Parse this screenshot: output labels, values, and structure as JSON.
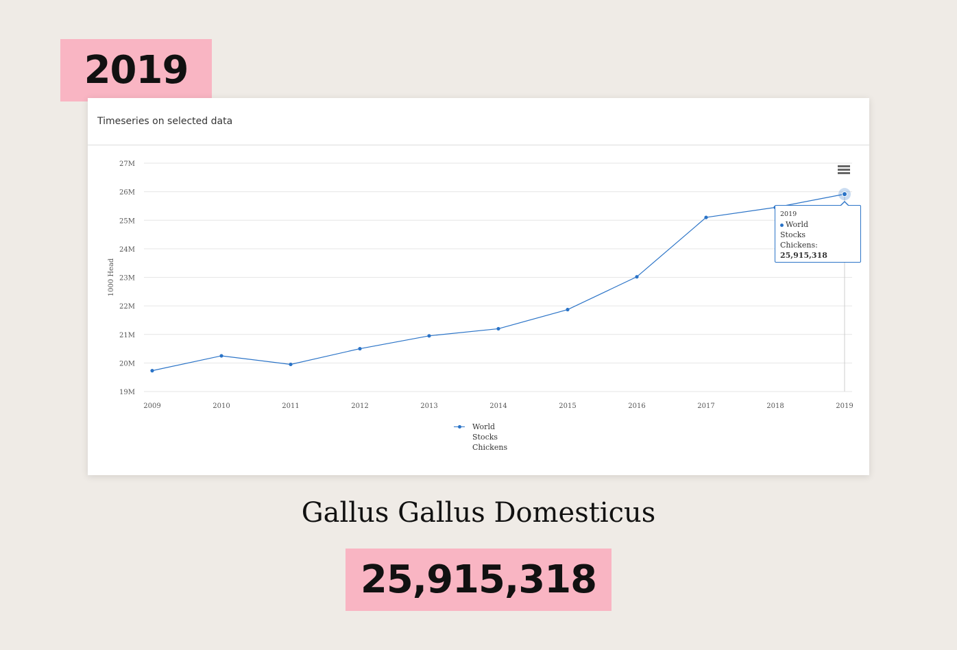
{
  "year_badge": "2019",
  "card": {
    "header_title": "Timeseries on selected data"
  },
  "tooltip": {
    "year": "2019",
    "series_name": "World",
    "line2": "Stocks",
    "line3_prefix": "Chickens: ",
    "value": "25,915,318"
  },
  "legend": {
    "label_lines": [
      "World",
      "Stocks",
      "Chickens"
    ]
  },
  "species_name": "Gallus Gallus Domesticus",
  "value_badge": "25,915,318",
  "colors": {
    "series": "#2a73c7",
    "badge_bg": "#f9b5c3",
    "grid": "#e6e6e6"
  },
  "icons": {
    "menu": "hamburger-menu-icon"
  },
  "chart_data": {
    "type": "line",
    "title": "Timeseries on selected data",
    "xlabel": "",
    "ylabel": "1000 Head",
    "x": [
      "2009",
      "2010",
      "2011",
      "2012",
      "2013",
      "2014",
      "2015",
      "2016",
      "2017",
      "2018",
      "2019"
    ],
    "series": [
      {
        "name": "World Stocks Chickens",
        "values": [
          19730000,
          20250000,
          19950000,
          20500000,
          20950000,
          21200000,
          21870000,
          23020000,
          25100000,
          25450000,
          25915318
        ]
      }
    ],
    "ylim": [
      19000000,
      27000000
    ],
    "yticks": [
      19000000,
      20000000,
      21000000,
      22000000,
      23000000,
      24000000,
      25000000,
      26000000,
      27000000
    ],
    "ytick_labels": [
      "19M",
      "20M",
      "21M",
      "22M",
      "23M",
      "24M",
      "25M",
      "26M",
      "27M"
    ],
    "grid": true,
    "legend_position": "bottom-center",
    "highlighted_point": "2019"
  }
}
